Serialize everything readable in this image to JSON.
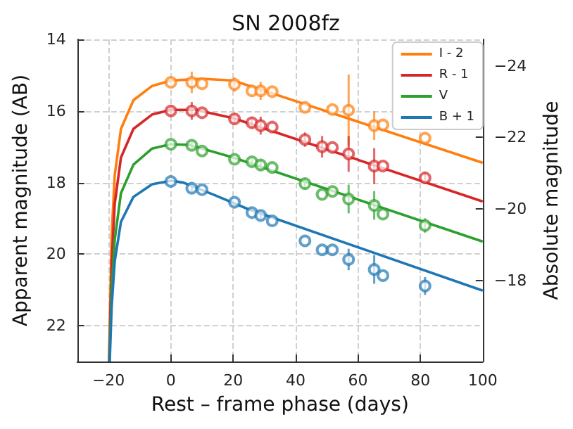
{
  "chart_data": {
    "type": "scatter",
    "title": "SN 2008fz",
    "xlabel": "Rest – frame phase (days)",
    "ylabel": "Apparent magnitude (AB)",
    "y2label": "Absolute magnitude",
    "xlim": [
      -30,
      100
    ],
    "xticks": [
      -20,
      0,
      20,
      40,
      60,
      80,
      100
    ],
    "ylim": [
      23,
      14
    ],
    "yticks": [
      14,
      16,
      18,
      20,
      22
    ],
    "y2lim": [
      -15.74,
      -24.74
    ],
    "y2ticks": [
      -24,
      -22,
      -20,
      -18
    ],
    "grid": true,
    "legend": "top right",
    "line_style": "solid",
    "series": [
      {
        "name": "I - 2",
        "type": "line",
        "marker": "none",
        "color": "#ff7f0e",
        "x": [
          -19.8,
          -19,
          -18,
          -16,
          -12,
          -6,
          0,
          10,
          20,
          27,
          43,
          100
        ],
        "values": [
          23,
          19.5,
          17.8,
          16.5,
          15.7,
          15.3,
          15.15,
          15.1,
          15.15,
          15.35,
          15.81,
          17.45
        ]
      },
      {
        "name": "R - 1",
        "type": "line",
        "marker": "none",
        "color": "#d62728",
        "x": [
          -19.8,
          -19,
          -18,
          -16,
          -12,
          -6,
          0,
          8,
          20,
          100
        ],
        "values": [
          23,
          20.3,
          18.6,
          17.3,
          16.5,
          16.1,
          15.97,
          15.97,
          16.2,
          18.53
        ]
      },
      {
        "name": "V",
        "type": "line",
        "marker": "none",
        "color": "#2ca02c",
        "x": [
          -19.7,
          -19,
          -18,
          -16,
          -12,
          -6,
          0,
          6,
          20,
          100
        ],
        "values": [
          23,
          21,
          19.6,
          18.3,
          17.5,
          17.05,
          16.93,
          16.95,
          17.3,
          19.65
        ]
      },
      {
        "name": "B + 1",
        "type": "line",
        "marker": "none",
        "color": "#1f77b4",
        "x": [
          -19.6,
          -19,
          -18,
          -16,
          -12,
          -6,
          0,
          4,
          14,
          25,
          100
        ],
        "values": [
          23,
          21.5,
          20.2,
          19.1,
          18.4,
          18.05,
          17.95,
          18,
          18.35,
          18.75,
          21.02
        ]
      },
      {
        "marker": "circle",
        "color": "#ff7f0e",
        "x": [
          0,
          6.7,
          10,
          20.4,
          26,
          28.8,
          32.5,
          43,
          51.8,
          57,
          65.2,
          68,
          81.5
        ],
        "values": [
          15.2,
          15.2,
          15.24,
          15.26,
          15.44,
          15.44,
          15.46,
          15.9,
          15.96,
          15.98,
          16.41,
          16.39,
          16.76
        ],
        "errors": [
          null,
          0.3,
          null,
          0.2,
          null,
          0.25,
          null,
          null,
          null,
          1.0,
          0.4,
          null,
          null
        ]
      },
      {
        "marker": "circle",
        "color": "#d62728",
        "x": [
          0,
          6.7,
          10,
          20.4,
          26,
          28.8,
          32.5,
          43,
          48.5,
          51.8,
          57,
          65.2,
          68,
          81.5
        ],
        "values": [
          16.0,
          16.0,
          16.05,
          16.22,
          16.33,
          16.41,
          16.45,
          16.8,
          17.0,
          17.02,
          17.2,
          17.54,
          17.54,
          17.87
        ],
        "errors": [
          0.15,
          0.25,
          null,
          0.15,
          0.15,
          0.25,
          null,
          0.2,
          0.3,
          null,
          0.5,
          0.5,
          null,
          0.15
        ]
      },
      {
        "marker": "circle",
        "color": "#2ca02c",
        "x": [
          0,
          6.7,
          10,
          20.4,
          26,
          28.8,
          32.5,
          43,
          48.5,
          51.8,
          57,
          65.2,
          68,
          81.5
        ],
        "values": [
          16.93,
          16.96,
          17.12,
          17.35,
          17.42,
          17.51,
          17.58,
          18.03,
          18.33,
          18.25,
          18.46,
          18.64,
          18.88,
          19.2
        ],
        "errors": [
          null,
          0.1,
          null,
          null,
          0.1,
          0.15,
          null,
          0.15,
          null,
          null,
          0.4,
          0.4,
          null,
          0.2
        ]
      },
      {
        "marker": "circle",
        "color": "#1f77b4",
        "x": [
          0,
          6.7,
          10,
          20.4,
          26,
          28.8,
          32.5,
          43,
          48.5,
          51.8,
          57,
          65.2,
          68,
          81.5
        ],
        "values": [
          17.97,
          18.16,
          18.2,
          18.55,
          18.84,
          18.92,
          19.07,
          19.63,
          19.88,
          19.88,
          20.15,
          20.43,
          20.6,
          20.89
        ],
        "errors": [
          null,
          0.1,
          null,
          null,
          null,
          0.1,
          null,
          null,
          null,
          null,
          0.3,
          0.4,
          null,
          0.25
        ]
      }
    ]
  }
}
